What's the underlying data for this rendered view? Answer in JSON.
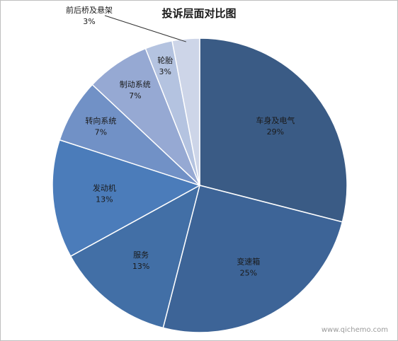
{
  "chart_data": {
    "type": "pie",
    "title": "投诉层面对比图",
    "slices": [
      {
        "label": "车身及电气",
        "pct_text": "29%",
        "value": 29,
        "color": "#3a5b85"
      },
      {
        "label": "变速箱",
        "pct_text": "25%",
        "value": 25,
        "color": "#3d6497"
      },
      {
        "label": "服务",
        "pct_text": "13%",
        "value": 13,
        "color": "#426fa6"
      },
      {
        "label": "发动机",
        "pct_text": "13%",
        "value": 13,
        "color": "#4b7cba"
      },
      {
        "label": "转向系统",
        "pct_text": "7%",
        "value": 7,
        "color": "#7191c6"
      },
      {
        "label": "制动系统",
        "pct_text": "7%",
        "value": 7,
        "color": "#96a9d3"
      },
      {
        "label": "轮胎",
        "pct_text": "3%",
        "value": 3,
        "color": "#b4c3e0"
      },
      {
        "label": "前后桥及悬架",
        "pct_text": "3%",
        "value": 3,
        "color": "#cdd5e8"
      }
    ]
  },
  "watermark": "www.qichemo.com"
}
